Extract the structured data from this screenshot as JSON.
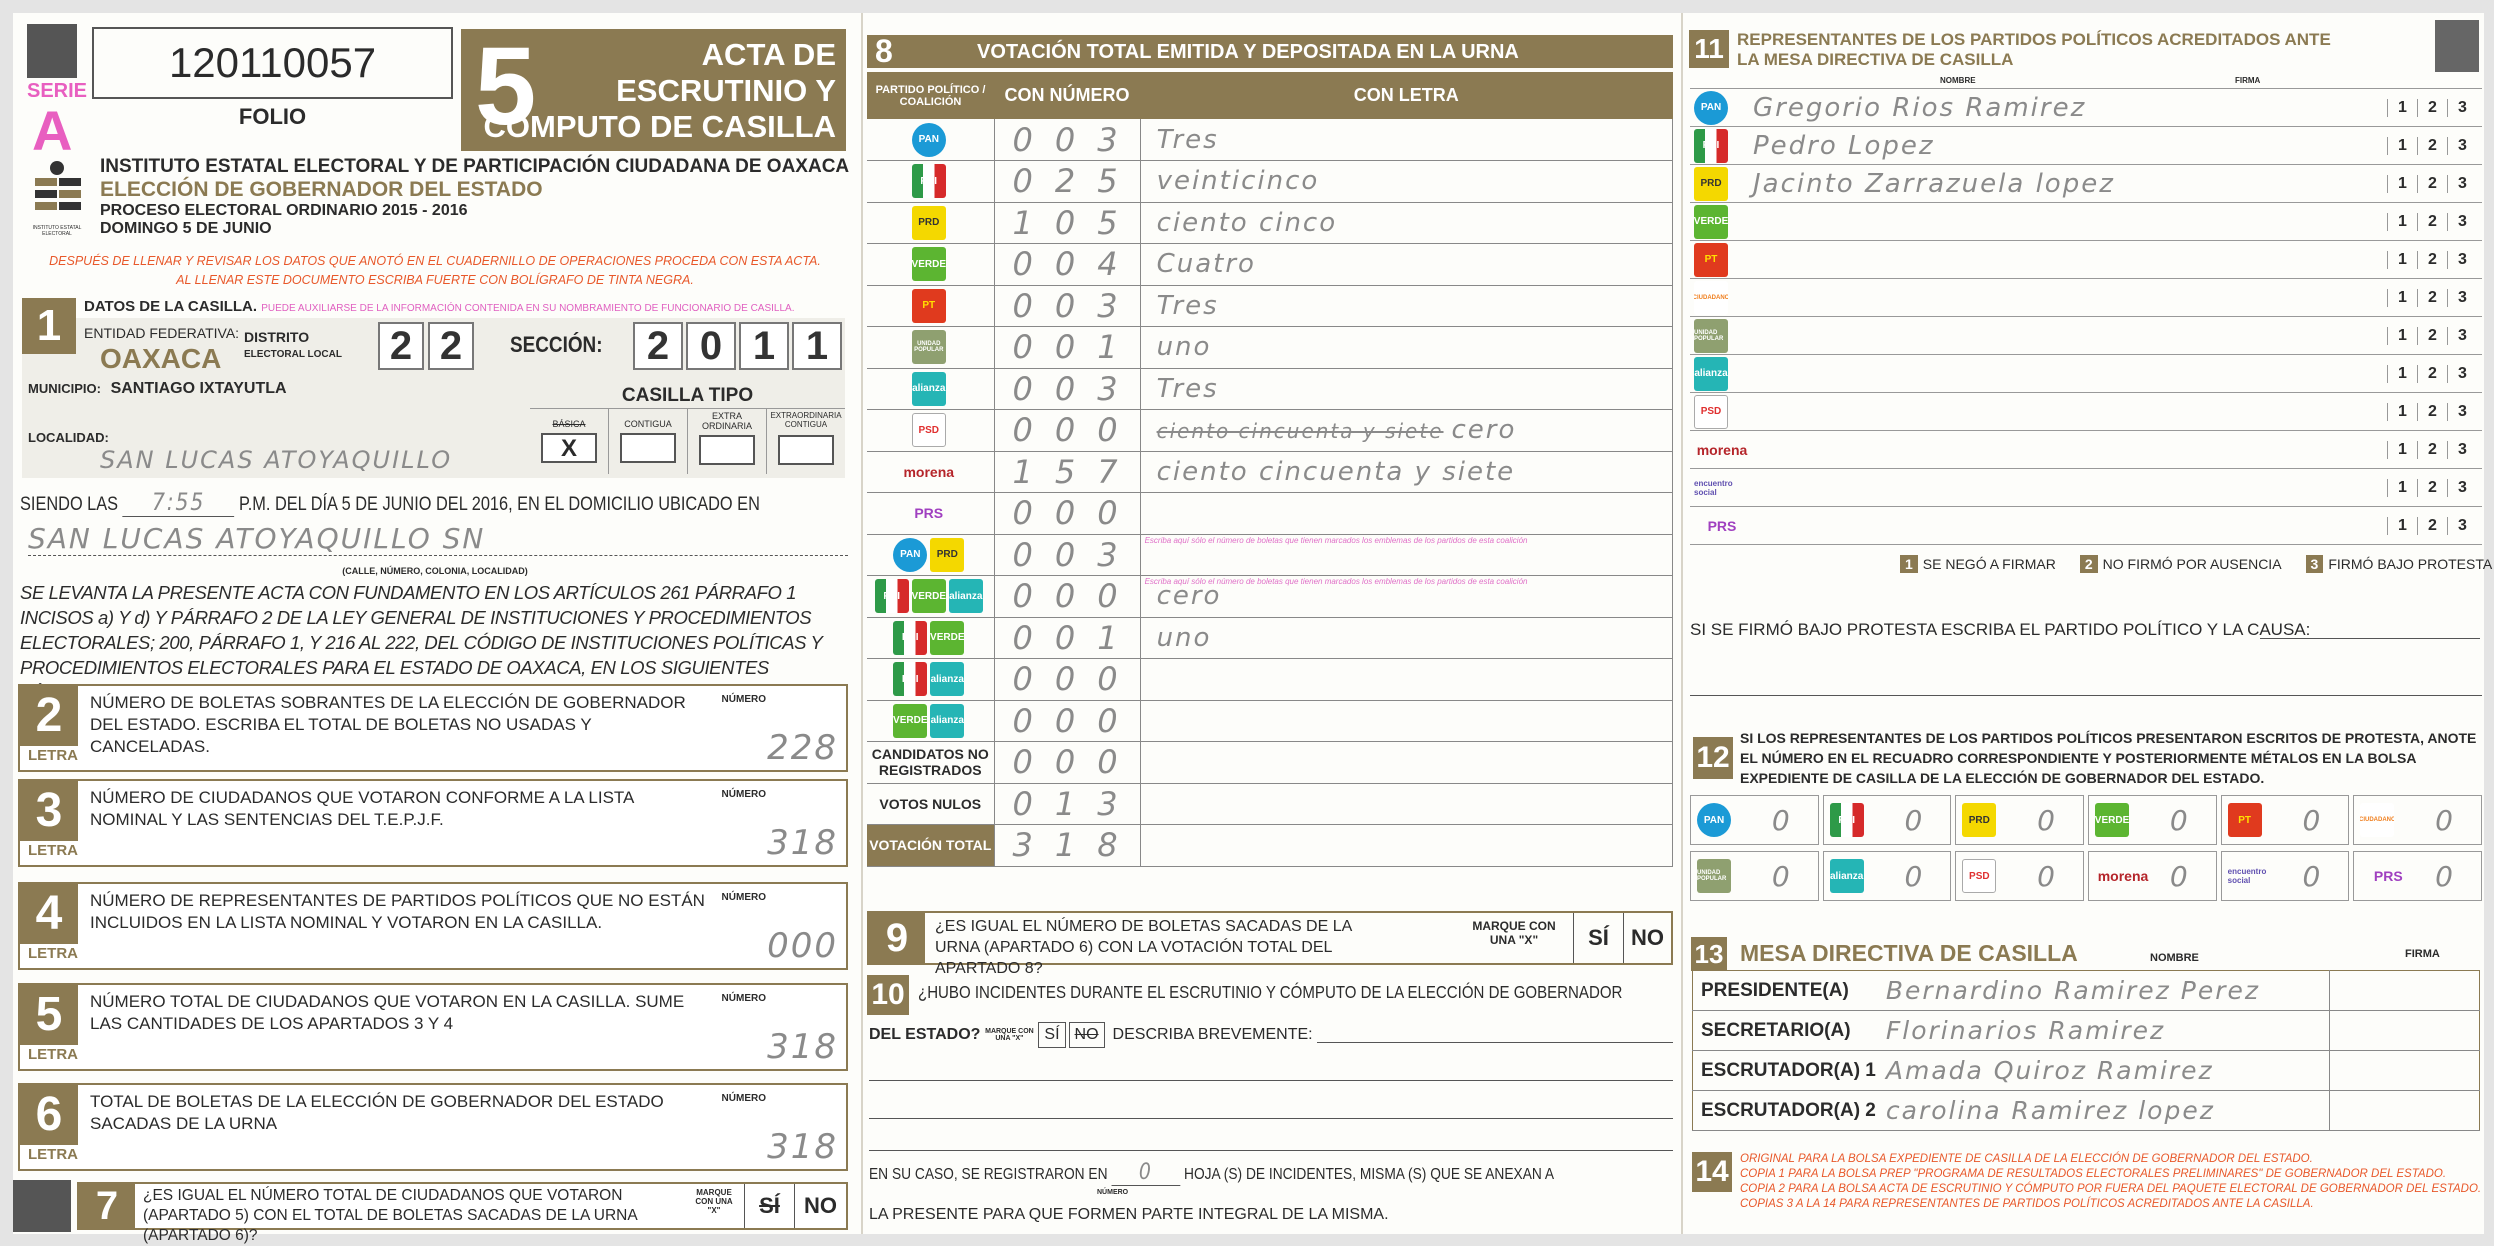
{
  "header": {
    "serie_label": "SERIE",
    "serie_letter": "A",
    "folio_number": "120110057",
    "folio_label": "FOLIO",
    "acta_number": "5",
    "title_lines": [
      "ACTA DE",
      "ESCRUTINIO Y",
      "CÓMPUTO DE CASILLA"
    ],
    "institute": "INSTITUTO ESTATAL ELECTORAL Y DE PARTICIPACIÓN CIUDADANA DE OAXACA",
    "election": "ELECCIÓN DE GOBERNADOR DEL ESTADO",
    "process": "PROCESO ELECTORAL ORDINARIO 2015 - 2016",
    "date": "DOMINGO 5 DE JUNIO",
    "logo_text": "INSTITUTO ESTATAL ELECTORAL",
    "instructions": [
      "DESPUÉS DE LLENAR Y REVISAR LOS DATOS QUE ANOTÓ EN EL CUADERNILLO DE OPERACIONES PROCEDA CON ESTA ACTA.",
      "AL LLENAR ESTE DOCUMENTO ESCRIBA FUERTE CON BOLÍGRAFO DE TINTA NEGRA."
    ]
  },
  "section1": {
    "number": "1",
    "title": "DATOS DE LA CASILLA.",
    "hint": "PUEDE AUXILIARSE DE LA INFORMACIÓN CONTENIDA EN SU NOMBRAMIENTO DE FUNCIONARIO DE CASILLA.",
    "entidad_label": "ENTIDAD FEDERATIVA:",
    "entidad": "OAXACA",
    "distrito_label": "DISTRITO",
    "distrito_sub": "ELECTORAL LOCAL",
    "distrito_digits": [
      "2",
      "2"
    ],
    "seccion_label": "SECCIÓN:",
    "seccion_digits": [
      "2",
      "0",
      "1",
      "1"
    ],
    "municipio_label": "MUNICIPIO:",
    "municipio": "SANTIAGO IXTAYUTLA",
    "localidad_label": "LOCALIDAD:",
    "localidad": "SAN LUCAS ATOYAQUILLO",
    "casilla_tipo_label": "CASILLA TIPO",
    "tipos": [
      "BÁSICA",
      "CONTIGUA",
      "EXTRA ORDINARIA",
      "EXTRAORDINARIA CONTIGUA"
    ],
    "tipo_mark": "X"
  },
  "opening": {
    "prefix": "SIENDO LAS",
    "time": "7:55",
    "suffix": "P.M. DEL DÍA 5 DE JUNIO DEL 2016, EN EL DOMICILIO UBICADO EN",
    "address": "SAN LUCAS ATOYAQUILLO SN",
    "address_caption": "(CALLE, NÚMERO, COLONIA, LOCALIDAD)",
    "paragraph": "SE LEVANTA LA PRESENTE ACTA CON FUNDAMENTO EN LOS ARTÍCULOS 261 PÁRRAFO 1 INCISOS a) Y d) Y PÁRRAFO 2 DE LA LEY GENERAL DE INSTITUCIONES Y PROCEDIMIENTOS ELECTORALES; 200, PÁRRAFO 1, Y 216 AL 222, DEL CÓDIGO DE INSTITUCIONES POLÍTICAS Y PROCEDIMIENTOS ELECTORALES PARA EL ESTADO DE OAXACA, EN LOS SIGUIENTES TÉRMINOS:"
  },
  "count_sections": [
    {
      "number": "2",
      "text": "NÚMERO DE BOLETAS SOBRANTES DE LA ELECCIÓN DE GOBERNADOR DEL ESTADO. ESCRIBA EL TOTAL DE BOLETAS NO USADAS Y CANCELADAS.",
      "numero_label": "NÚMERO",
      "letra_label": "LETRA",
      "value": "228"
    },
    {
      "number": "3",
      "text": "NÚMERO DE CIUDADANOS QUE VOTARON CONFORME A LA LISTA NOMINAL Y LAS SENTENCIAS DEL T.E.P.J.F.",
      "numero_label": "NÚMERO",
      "letra_label": "LETRA",
      "value": "318"
    },
    {
      "number": "4",
      "text": "NÚMERO DE REPRESENTANTES DE PARTIDOS POLÍTICOS QUE NO ESTÁN INCLUIDOS EN LA LISTA NOMINAL Y VOTARON EN LA CASILLA.",
      "numero_label": "NÚMERO",
      "letra_label": "LETRA",
      "value": "000"
    },
    {
      "number": "5",
      "text": "NÚMERO TOTAL DE CIUDADANOS QUE VOTARON EN LA CASILLA. SUME LAS CANTIDADES DE LOS APARTADOS 3 Y 4",
      "numero_label": "NÚMERO",
      "letra_label": "LETRA",
      "value": "318"
    },
    {
      "number": "6",
      "text": "TOTAL DE BOLETAS DE LA ELECCIÓN DE GOBERNADOR DEL ESTADO SACADAS DE LA URNA",
      "numero_label": "NÚMERO",
      "letra_label": "LETRA",
      "value": "318"
    }
  ],
  "section7": {
    "number": "7",
    "text": "¿ES IGUAL EL NÚMERO TOTAL DE CIUDADANOS QUE VOTARON (APARTADO 5) CON EL TOTAL DE BOLETAS SACADAS DE LA URNA (APARTADO 6)?",
    "mark_label": "MARQUE CON UNA \"X\"",
    "yes": "SÍ",
    "no": "NO",
    "marked": "yes"
  },
  "parties": {
    "PAN": {
      "label": "PAN",
      "bg": "#1b9ad6",
      "fg": "#ffffff"
    },
    "PRI": {
      "label": "PRI",
      "bg": "#2e9a48",
      "fg": "#ffffff"
    },
    "PRD": {
      "label": "PRD",
      "bg": "#f4d800",
      "fg": "#333333"
    },
    "VERDE": {
      "label": "VERDE",
      "bg": "#5cb531",
      "fg": "#ffffff"
    },
    "PT": {
      "label": "PT",
      "bg": "#e03a1e",
      "fg": "#ffe000"
    },
    "MC": {
      "label": "CIUDADANO",
      "bg": "#ffffff",
      "fg": "#f08020"
    },
    "PUP": {
      "label": "UNIDAD POPULAR",
      "bg": "#8fa070",
      "fg": "#ffffff"
    },
    "NA": {
      "label": "alianza",
      "bg": "#25b5b5",
      "fg": "#ffffff"
    },
    "PSD": {
      "label": "PSD",
      "bg": "#ffffff",
      "fg": "#e03030"
    },
    "MORENA": {
      "label": "morena",
      "bg": "transparent",
      "fg": "#b5252a"
    },
    "PES": {
      "label": "encuentro social",
      "bg": "transparent",
      "fg": "#6050b0"
    },
    "PRS": {
      "label": "PRS",
      "bg": "transparent",
      "fg": "#a040c0"
    }
  },
  "section8": {
    "number": "8",
    "title": "VOTACIÓN TOTAL EMITIDA Y DEPOSITADA EN LA URNA",
    "col_party": "PARTIDO POLÍTICO / COALICIÓN",
    "col_numero": "CON NÚMERO",
    "col_letra": "CON LETRA",
    "coalition_note": "Escriba aquí sólo el número de boletas que tienen marcados los emblemas de los partidos de esta coalición",
    "rows": [
      {
        "parties": [
          "PAN"
        ],
        "numero": "003",
        "letra": "Tres"
      },
      {
        "parties": [
          "PRI"
        ],
        "numero": "025",
        "letra": "veinticinco"
      },
      {
        "parties": [
          "PRD"
        ],
        "numero": "105",
        "letra": "ciento cinco"
      },
      {
        "parties": [
          "VERDE"
        ],
        "numero": "004",
        "letra": "Cuatro"
      },
      {
        "parties": [
          "PT"
        ],
        "numero": "003",
        "letra": "Tres"
      },
      {
        "parties": [
          "PUP"
        ],
        "numero": "001",
        "letra": "uno"
      },
      {
        "parties": [
          "NA"
        ],
        "numero": "003",
        "letra": "Tres"
      },
      {
        "parties": [
          "PSD"
        ],
        "numero": "000",
        "letra": "cero",
        "struck": "ciento cincuenta y siete"
      },
      {
        "parties": [
          "MORENA"
        ],
        "numero": "157",
        "letra": "ciento cincuenta y siete"
      },
      {
        "parties": [
          "PRS"
        ],
        "numero": "000",
        "letra": ""
      },
      {
        "parties": [
          "PAN",
          "PRD"
        ],
        "numero": "003",
        "letra": "",
        "note": true
      },
      {
        "parties": [
          "PRI",
          "VERDE",
          "NA"
        ],
        "numero": "000",
        "letra": "cero",
        "note": true
      },
      {
        "parties": [
          "PRI",
          "VERDE"
        ],
        "numero": "001",
        "letra": "uno"
      },
      {
        "parties": [
          "PRI",
          "NA"
        ],
        "numero": "000",
        "letra": ""
      },
      {
        "parties": [
          "VERDE",
          "NA"
        ],
        "numero": "000",
        "letra": ""
      },
      {
        "label": "CANDIDATOS NO REGISTRADOS",
        "numero": "000",
        "letra": ""
      },
      {
        "label": "VOTOS NULOS",
        "numero": "013",
        "letra": ""
      },
      {
        "label": "VOTACIÓN TOTAL",
        "numero": "318",
        "letra": "",
        "total": true
      }
    ]
  },
  "section9": {
    "number": "9",
    "text": "¿ES IGUAL EL NÚMERO DE BOLETAS SACADAS DE LA URNA (APARTADO 6) CON LA VOTACIÓN TOTAL DEL APARTADO 8?",
    "mark_label": "MARQUE CON UNA \"X\"",
    "yes": "SÍ",
    "no": "NO"
  },
  "section10": {
    "number": "10",
    "text": "¿HUBO INCIDENTES DURANTE EL ESCRUTINIO Y CÓMPUTO DE LA ELECCIÓN DE GOBERNADOR",
    "text2": "DEL ESTADO?",
    "mark_label": "MARQUE CON UNA \"X\"",
    "yes": "SÍ",
    "no": "NO",
    "marked": "no",
    "describe": "DESCRIBA BREVEMENTE:",
    "hojas_prefix": "EN SU CASO, SE REGISTRARON EN",
    "hojas_value": "0",
    "hojas_caption": "NÚMERO",
    "hojas_suffix": "HOJA (S) DE INCIDENTES, MISMA (S) QUE SE ANEXAN A",
    "closing": "LA PRESENTE PARA QUE FORMEN PARTE INTEGRAL DE LA MISMA."
  },
  "section11": {
    "number": "11",
    "title": "REPRESENTANTES DE LOS PARTIDOS POLÍTICOS ACREDITADOS ANTE LA MESA DIRECTIVA DE CASILLA",
    "col_nombre": "NOMBRE",
    "col_firma": "FIRMA",
    "options": [
      "1",
      "2",
      "3"
    ],
    "rows": [
      {
        "party": "PAN",
        "name": "Gregorio Rios Ramirez"
      },
      {
        "party": "PRI",
        "name": "Pedro Lopez"
      },
      {
        "party": "PRD",
        "name": "Jacinto Zarrazuela lopez"
      },
      {
        "party": "VERDE",
        "name": ""
      },
      {
        "party": "PT",
        "name": ""
      },
      {
        "party": "MC",
        "name": ""
      },
      {
        "party": "PUP",
        "name": ""
      },
      {
        "party": "NA",
        "name": ""
      },
      {
        "party": "PSD",
        "name": ""
      },
      {
        "party": "MORENA",
        "name": ""
      },
      {
        "party": "PES",
        "name": ""
      },
      {
        "party": "PRS",
        "name": ""
      }
    ],
    "legend": [
      {
        "n": "1",
        "text": "SE NEGÓ A FIRMAR"
      },
      {
        "n": "2",
        "text": "NO FIRMÓ POR AUSENCIA"
      },
      {
        "n": "3",
        "text": "FIRMÓ BAJO PROTESTA"
      }
    ],
    "protest_prompt": "SI SE FIRMÓ BAJO PROTESTA ESCRIBA EL PARTIDO POLÍTICO Y LA CAUSA:"
  },
  "section12": {
    "number": "12",
    "text": "SI LOS REPRESENTANTES DE LOS PARTIDOS POLÍTICOS PRESENTARON ESCRITOS DE PROTESTA, ANOTE EL NÚMERO EN EL RECUADRO CORRESPONDIENTE Y POSTERIORMENTE MÉTALOS EN LA BOLSA EXPEDIENTE DE CASILLA DE LA ELECCIÓN DE GOBERNADOR DEL ESTADO.",
    "boxes": [
      {
        "party": "PAN",
        "value": "0"
      },
      {
        "party": "PRI",
        "value": "0"
      },
      {
        "party": "PRD",
        "value": "0"
      },
      {
        "party": "VERDE",
        "value": "0"
      },
      {
        "party": "PT",
        "value": "0"
      },
      {
        "party": "MC",
        "value": "0"
      },
      {
        "party": "PUP",
        "value": "0"
      },
      {
        "party": "NA",
        "value": "0"
      },
      {
        "party": "PSD",
        "value": "0"
      },
      {
        "party": "MORENA",
        "value": "0"
      },
      {
        "party": "PES",
        "value": "0"
      },
      {
        "party": "PRS",
        "value": "0"
      }
    ]
  },
  "section13": {
    "number": "13",
    "title": "MESA DIRECTIVA DE CASILLA",
    "col_nombre": "NOMBRE",
    "col_firma": "FIRMA",
    "rows": [
      {
        "role": "PRESIDENTE(A)",
        "name": "Bernardino Ramirez Perez"
      },
      {
        "role": "SECRETARIO(A)",
        "name": "Florinarios Ramirez"
      },
      {
        "role": "ESCRUTADOR(A) 1",
        "name": "Amada Quiroz Ramirez"
      },
      {
        "role": "ESCRUTADOR(A) 2",
        "name": "carolina Ramirez lopez"
      }
    ]
  },
  "section14": {
    "number": "14",
    "lines": [
      "ORIGINAL PARA LA BOLSA EXPEDIENTE DE CASILLA DE LA ELECCIÓN DE GOBERNADOR DEL ESTADO.",
      "COPIA 1 PARA LA BOLSA PREP \"PROGRAMA DE RESULTADOS ELECTORALES PRELIMINARES\" DE GOBERNADOR DEL ESTADO.",
      "COPIA 2 PARA LA BOLSA ACTA DE ESCRUTINIO Y CÓMPUTO POR FUERA DEL PAQUETE ELECTORAL DE GOBERNADOR DEL ESTADO.",
      "COPIAS 3 A LA 14 PARA REPRESENTANTES DE PARTIDOS POLÍTICOS ACREDITADOS ANTE LA CASILLA."
    ]
  }
}
